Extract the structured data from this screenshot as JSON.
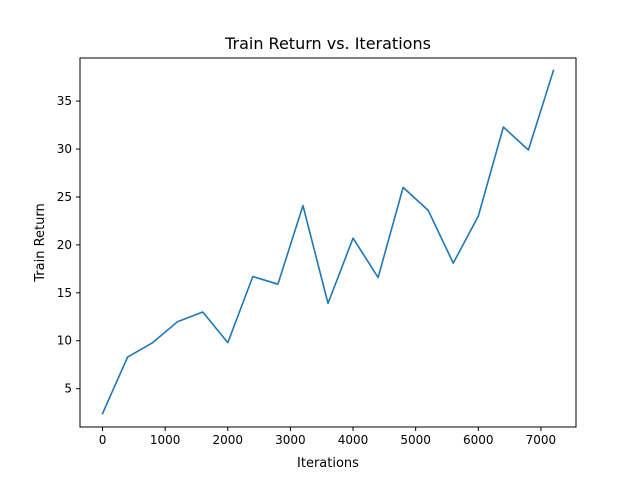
{
  "chart_data": {
    "type": "line",
    "title": "Train Return vs. Iterations",
    "xlabel": "Iterations",
    "ylabel": "Train Return",
    "xlim": [
      -360,
      7560
    ],
    "ylim": [
      1.0,
      39.5
    ],
    "xticks": [
      0,
      1000,
      2000,
      3000,
      4000,
      5000,
      6000,
      7000
    ],
    "yticks": [
      5,
      10,
      15,
      20,
      25,
      30,
      35
    ],
    "xtick_labels": [
      "0",
      "1000",
      "2000",
      "3000",
      "4000",
      "5000",
      "6000",
      "7000"
    ],
    "ytick_labels": [
      "5",
      "10",
      "15",
      "20",
      "25",
      "30",
      "35"
    ],
    "grid": false,
    "series": [
      {
        "color": "#1f77b4",
        "x": [
          0,
          400,
          800,
          1200,
          1600,
          2000,
          2400,
          2800,
          3200,
          3600,
          4000,
          4400,
          4800,
          5200,
          5600,
          6000,
          6400,
          6800,
          7200
        ],
        "y": [
          2.4,
          8.3,
          9.8,
          12.0,
          13.0,
          9.8,
          16.7,
          15.9,
          24.1,
          13.9,
          20.7,
          16.6,
          26.0,
          23.6,
          18.1,
          23.0,
          32.3,
          29.9,
          38.2
        ]
      }
    ]
  }
}
